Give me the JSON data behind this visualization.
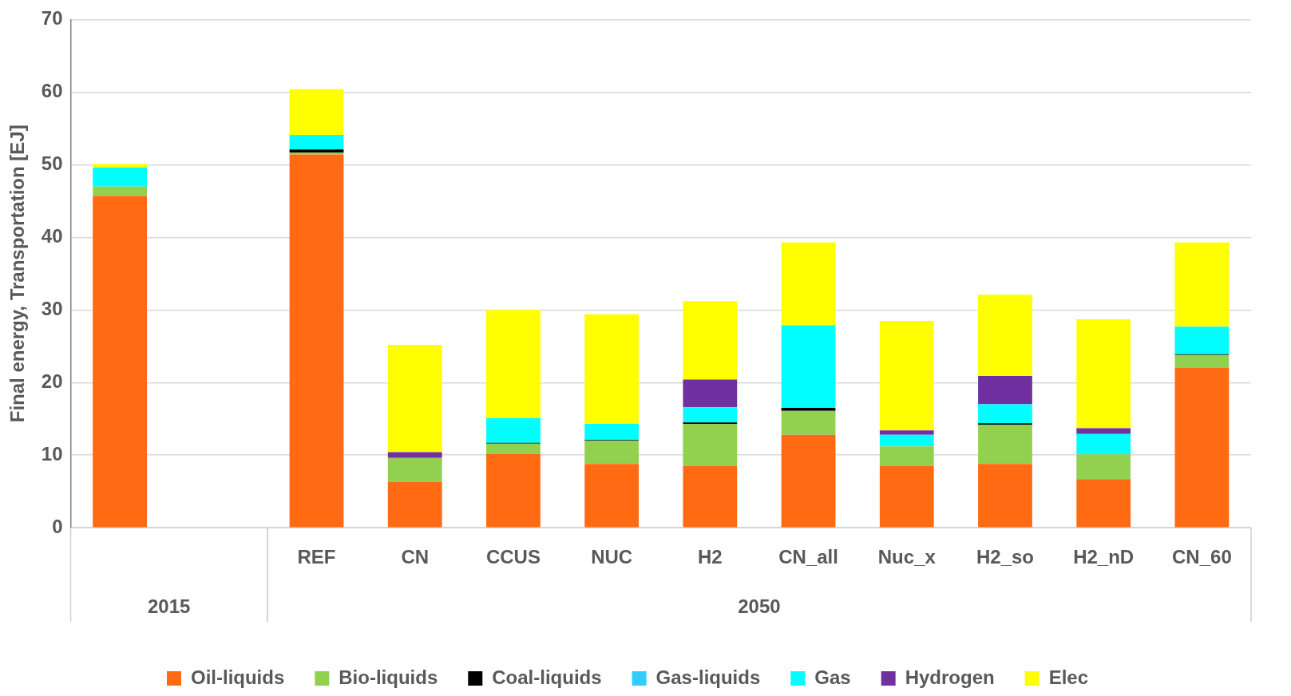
{
  "chart_data": {
    "type": "bar",
    "stacked": true,
    "ylabel": "Final energy, Transportation [EJ]",
    "categories": [
      null,
      null,
      "REF",
      "CN",
      "CCUS",
      "NUC",
      "H2",
      "CN_all",
      "Nuc_x",
      "H2_so",
      "H2_nD",
      "CN_60"
    ],
    "annotations": [
      "2015",
      "2050"
    ],
    "series": [
      {
        "name": "Oil-liquids",
        "color": "#ff6a13",
        "values": [
          45.7,
          null,
          51.4,
          6.3,
          10.2,
          8.8,
          8.5,
          12.8,
          8.5,
          8.8,
          6.7,
          22.0
        ]
      },
      {
        "name": "Bio-liquids",
        "color": "#92d050",
        "values": [
          1.3,
          null,
          0.3,
          3.3,
          1.4,
          3.2,
          5.8,
          3.3,
          2.7,
          5.4,
          3.4,
          1.8
        ]
      },
      {
        "name": "Coal-liquids",
        "color": "#000000",
        "values": [
          0,
          null,
          0.4,
          0,
          0.1,
          0.1,
          0.2,
          0.4,
          0,
          0.2,
          0,
          0.1
        ]
      },
      {
        "name": "Gas-liquids",
        "color": "#33ccff",
        "values": [
          0,
          null,
          0,
          0,
          0,
          0,
          0,
          0,
          0,
          0,
          0,
          0
        ]
      },
      {
        "name": "Gas",
        "color": "#00ffff",
        "values": [
          2.6,
          null,
          2.0,
          0,
          3.4,
          2.2,
          2.1,
          11.4,
          1.6,
          2.6,
          2.8,
          3.8
        ]
      },
      {
        "name": "Hydrogen",
        "color": "#7030a0",
        "values": [
          0,
          null,
          0,
          0.8,
          0,
          0,
          3.8,
          0,
          0.6,
          3.9,
          0.8,
          0
        ]
      },
      {
        "name": "Elec",
        "color": "#ffff00",
        "values": [
          0.5,
          null,
          6.3,
          14.8,
          14.9,
          15.1,
          10.8,
          11.4,
          15.1,
          11.2,
          15.0,
          11.6
        ]
      }
    ],
    "ylim": [
      0,
      70
    ],
    "yticks": [
      0,
      10,
      20,
      30,
      40,
      50,
      60,
      70
    ],
    "grid": "y",
    "legend": "bottom"
  }
}
